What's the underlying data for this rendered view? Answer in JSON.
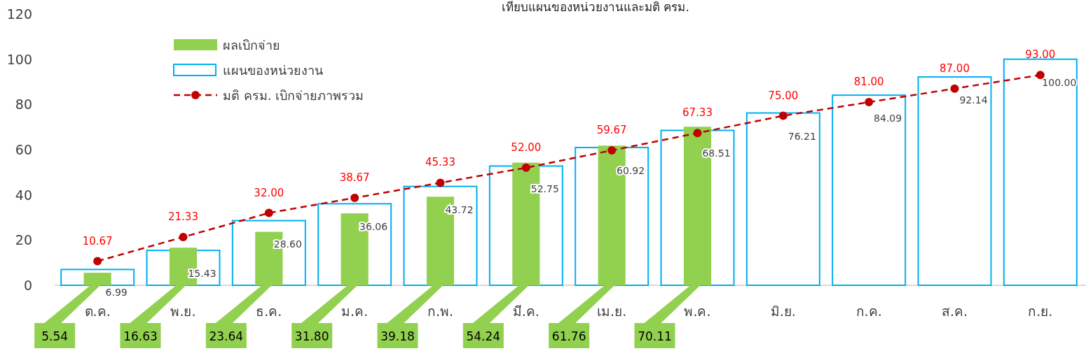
{
  "chart_data": {
    "type": "bar",
    "title": "เทียบแผนของหน่วยงานและมติ ครม.",
    "categories": [
      "ต.ค.",
      "พ.ย.",
      "ธ.ค.",
      "ม.ค.",
      "ก.พ.",
      "มี.ค.",
      "เม.ย.",
      "พ.ค.",
      "มิ.ย.",
      "ก.ค.",
      "ส.ค.",
      "ก.ย."
    ],
    "series": [
      {
        "name": "ผลเบิกจ่าย",
        "color": "#92d050",
        "values": [
          5.54,
          16.63,
          23.64,
          31.8,
          39.18,
          54.24,
          61.76,
          70.11,
          null,
          null,
          null,
          null
        ],
        "value_labels": [
          "5.54",
          "16.63",
          "23.64",
          "31.80",
          "39.18",
          "54.24",
          "61.76",
          "70.11",
          null,
          null,
          null,
          null
        ]
      },
      {
        "name": "แผนของหน่วยงาน",
        "color": "#00b0f0",
        "values": [
          6.99,
          15.43,
          28.6,
          36.06,
          43.72,
          52.75,
          60.92,
          68.51,
          76.21,
          84.09,
          92.14,
          100.0
        ],
        "value_labels": [
          "6.99",
          "15.43",
          "28.60",
          "36.06",
          "43.72",
          "52.75",
          "60.92",
          "68.51",
          "76.21",
          "84.09",
          "92.14",
          "100.00"
        ]
      },
      {
        "name": "มติ ครม. เบิกจ่ายภาพรวม",
        "type": "line",
        "color": "#c00000",
        "marker": "circle",
        "line_style": "dashed",
        "values": [
          10.67,
          21.33,
          32.0,
          38.67,
          45.33,
          52.0,
          59.67,
          67.33,
          75.0,
          81.0,
          87.0,
          93.0
        ],
        "value_labels": [
          "10.67",
          "21.33",
          "32.00",
          "38.67",
          "45.33",
          "52.00",
          "59.67",
          "67.33",
          "75.00",
          "81.00",
          "87.00",
          "93.00"
        ]
      }
    ],
    "ylim": [
      0,
      120
    ],
    "yticks": [
      0,
      20,
      40,
      60,
      80,
      100,
      120
    ],
    "grid": false,
    "legend": "top left",
    "data_labels": true
  }
}
